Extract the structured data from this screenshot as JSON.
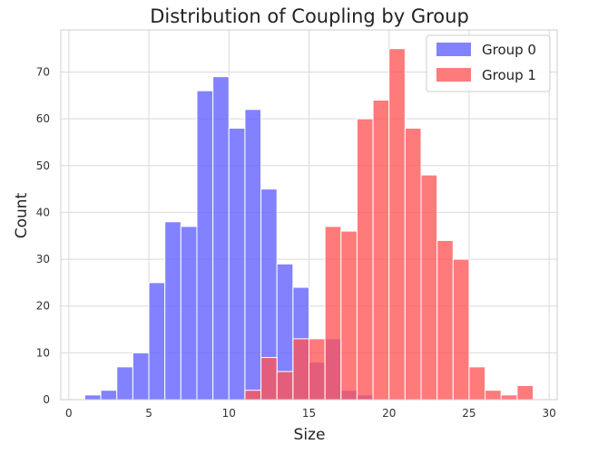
{
  "chart_data": {
    "type": "bar",
    "title": "Distribution of Coupling by Group",
    "xlabel": "Size",
    "ylabel": "Count",
    "xlim": [
      -0.5,
      30.5
    ],
    "ylim": [
      0,
      79
    ],
    "xticks": [
      0,
      5,
      10,
      15,
      20,
      25,
      30
    ],
    "yticks": [
      0,
      10,
      20,
      30,
      40,
      50,
      60,
      70
    ],
    "grid": true,
    "legend_position": "top-right",
    "series": [
      {
        "name": "Group 0",
        "color": "#6666ff",
        "bins": [
          {
            "x0": 1.0,
            "x1": 2.0,
            "count": 1
          },
          {
            "x0": 2.0,
            "x1": 3.0,
            "count": 2
          },
          {
            "x0": 3.0,
            "x1": 4.0,
            "count": 7
          },
          {
            "x0": 4.0,
            "x1": 5.0,
            "count": 10
          },
          {
            "x0": 5.0,
            "x1": 6.0,
            "count": 25
          },
          {
            "x0": 6.0,
            "x1": 7.0,
            "count": 38
          },
          {
            "x0": 7.0,
            "x1": 8.0,
            "count": 37
          },
          {
            "x0": 8.0,
            "x1": 9.0,
            "count": 66
          },
          {
            "x0": 9.0,
            "x1": 10.0,
            "count": 69
          },
          {
            "x0": 10.0,
            "x1": 11.0,
            "count": 58
          },
          {
            "x0": 11.0,
            "x1": 12.0,
            "count": 62
          },
          {
            "x0": 12.0,
            "x1": 13.0,
            "count": 45
          },
          {
            "x0": 13.0,
            "x1": 14.0,
            "count": 29
          },
          {
            "x0": 14.0,
            "x1": 15.0,
            "count": 24
          },
          {
            "x0": 15.0,
            "x1": 16.0,
            "count": 8
          },
          {
            "x0": 16.0,
            "x1": 17.0,
            "count": 13
          },
          {
            "x0": 17.0,
            "x1": 18.0,
            "count": 2
          },
          {
            "x0": 18.0,
            "x1": 19.0,
            "count": 1
          }
        ]
      },
      {
        "name": "Group 1",
        "color": "#ff5555",
        "bins": [
          {
            "x0": 11.0,
            "x1": 12.0,
            "count": 2
          },
          {
            "x0": 12.0,
            "x1": 13.0,
            "count": 9
          },
          {
            "x0": 13.0,
            "x1": 14.0,
            "count": 6
          },
          {
            "x0": 14.0,
            "x1": 15.0,
            "count": 13
          },
          {
            "x0": 15.0,
            "x1": 16.0,
            "count": 13
          },
          {
            "x0": 16.0,
            "x1": 17.0,
            "count": 37
          },
          {
            "x0": 17.0,
            "x1": 18.0,
            "count": 36
          },
          {
            "x0": 18.0,
            "x1": 19.0,
            "count": 60
          },
          {
            "x0": 19.0,
            "x1": 20.0,
            "count": 64
          },
          {
            "x0": 20.0,
            "x1": 21.0,
            "count": 75
          },
          {
            "x0": 21.0,
            "x1": 22.0,
            "count": 58
          },
          {
            "x0": 22.0,
            "x1": 23.0,
            "count": 48
          },
          {
            "x0": 23.0,
            "x1": 24.0,
            "count": 34
          },
          {
            "x0": 24.0,
            "x1": 25.0,
            "count": 30
          },
          {
            "x0": 25.0,
            "x1": 26.0,
            "count": 7
          },
          {
            "x0": 26.0,
            "x1": 27.0,
            "count": 2
          },
          {
            "x0": 27.0,
            "x1": 28.0,
            "count": 1
          },
          {
            "x0": 28.0,
            "x1": 29.0,
            "count": 3
          }
        ]
      }
    ]
  }
}
